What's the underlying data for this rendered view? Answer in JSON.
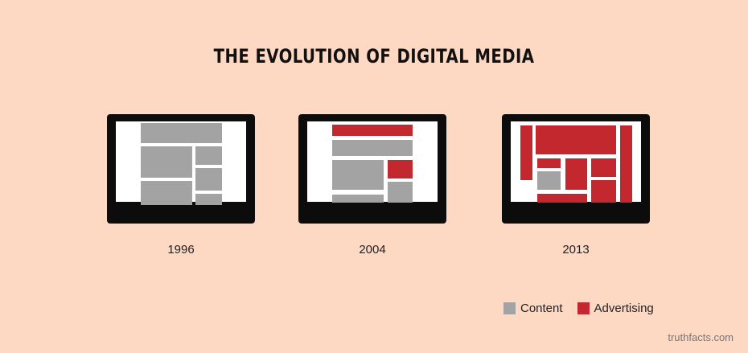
{
  "title": "THE EVOLUTION OF DIGITAL MEDIA",
  "colors": {
    "background": "#fdd9c4",
    "content": "#a3a3a3",
    "advertising": "#c4282f",
    "frame": "#0c0c0c",
    "screen": "#ffffff"
  },
  "screens": [
    {
      "year": "1996",
      "blocks": [
        {
          "kind": "content"
        },
        {
          "kind": "content"
        },
        {
          "kind": "content"
        },
        {
          "kind": "content"
        },
        {
          "kind": "content"
        },
        {
          "kind": "content"
        }
      ]
    },
    {
      "year": "2004",
      "blocks": [
        {
          "kind": "advertising"
        },
        {
          "kind": "content"
        },
        {
          "kind": "content"
        },
        {
          "kind": "advertising"
        },
        {
          "kind": "content"
        },
        {
          "kind": "content"
        }
      ]
    },
    {
      "year": "2013",
      "blocks": [
        {
          "kind": "advertising"
        },
        {
          "kind": "advertising"
        },
        {
          "kind": "advertising"
        },
        {
          "kind": "advertising"
        },
        {
          "kind": "content"
        },
        {
          "kind": "advertising"
        },
        {
          "kind": "advertising"
        },
        {
          "kind": "advertising"
        },
        {
          "kind": "advertising"
        },
        {
          "kind": "advertising"
        }
      ]
    }
  ],
  "legend": {
    "content_label": "Content",
    "advertising_label": "Advertising"
  },
  "credit": "truthfacts.com"
}
